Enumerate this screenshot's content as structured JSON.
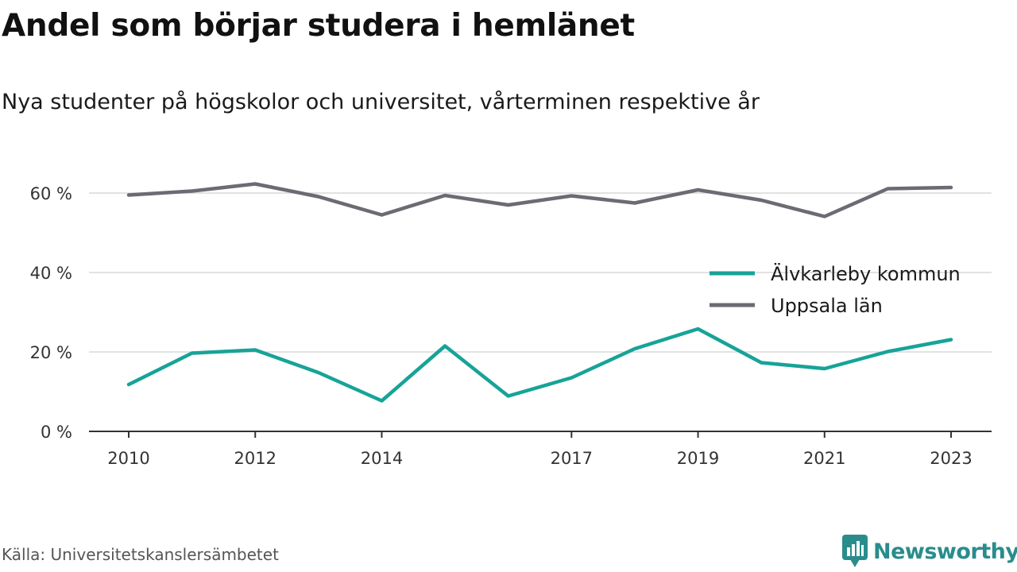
{
  "title": "Andel som börjar studera i hemlänet",
  "subtitle": "Nya studenter på högskolor och universitet, vårterminen respektive år",
  "source": "Källa: Universitetskanslersämbetet",
  "brand": {
    "name": "Newsworthy",
    "icon": "newsworthy-logo-icon",
    "color": "#2a8c8c"
  },
  "chart_data": {
    "type": "line",
    "x": [
      2010,
      2011,
      2012,
      2013,
      2014,
      2015,
      2016,
      2017,
      2018,
      2019,
      2020,
      2021,
      2022,
      2023
    ],
    "x_tick_labels": [
      "2010",
      "2012",
      "2014",
      "2017",
      "2019",
      "2021",
      "2023"
    ],
    "ylim": [
      0,
      70
    ],
    "y_ticks": [
      0,
      20,
      40,
      60
    ],
    "y_tick_labels": [
      "0 %",
      "20 %",
      "40 %",
      "60 %"
    ],
    "grid": true,
    "legend_position": "right",
    "series": [
      {
        "name": "Älvkarleby kommun",
        "color": "#17a398",
        "values": [
          11.8,
          19.7,
          20.5,
          14.8,
          7.7,
          21.5,
          8.9,
          13.5,
          20.8,
          25.8,
          17.3,
          15.8,
          20.1,
          23.1
        ]
      },
      {
        "name": "Uppsala län",
        "color": "#6b6b73",
        "values": [
          59.5,
          60.5,
          62.3,
          59.1,
          54.5,
          59.4,
          57.0,
          59.3,
          57.5,
          60.8,
          58.2,
          54.1,
          61.1,
          61.4
        ]
      }
    ]
  }
}
